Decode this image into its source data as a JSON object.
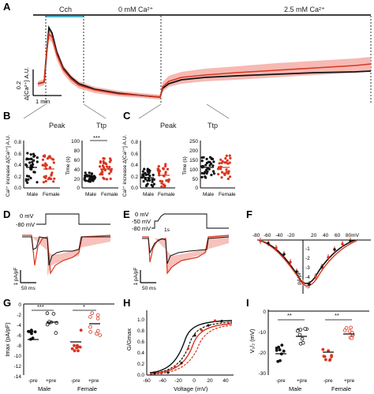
{
  "colors": {
    "male": "#111111",
    "female": "#d9361f",
    "female_band": "#f4a7a0",
    "male_band": "#9a9a9a",
    "cch_bar": "#4fb3c9"
  },
  "panels": {
    "A": {
      "letter": "A",
      "cch": "Cch",
      "ca0": "0 mM Ca²⁺",
      "ca25": "2.5 mM Ca²⁺",
      "scale_y_value": "0.2",
      "scale_y_label": "Δ[Ca²⁺] A.U.",
      "scale_x_label": "1 min"
    },
    "B": {
      "letter": "B",
      "peak": "Peak",
      "ttp": "Ttp",
      "y1_label": "Ca²⁺ increase Δ[Ca²⁺] A.U.",
      "y2_label": "Time (s)",
      "sig": "***",
      "male": "Male",
      "female": "Female",
      "y1_ticks": [
        "0.0",
        "0.2",
        "0.4",
        "0.6",
        "0.8"
      ],
      "y2_ticks": [
        "0",
        "20",
        "40",
        "60",
        "80",
        "100"
      ]
    },
    "C": {
      "letter": "C",
      "peak": "Peak",
      "ttp": "Ttp",
      "y1_label": "Ca²⁺ increase Δ[Ca²⁺] A.U.",
      "y2_label": "Time (s)",
      "male": "Male",
      "female": "Female",
      "y1_ticks": [
        "0.0",
        "0.2",
        "0.4",
        "0.6",
        "0.8"
      ],
      "y2_ticks": [
        "0",
        "50",
        "100",
        "150",
        "200",
        "250"
      ]
    },
    "D": {
      "letter": "D",
      "v1": "0 mV",
      "v2": "-80 mV",
      "scale_y": "1 pA/pF",
      "scale_x": "50 ms"
    },
    "E": {
      "letter": "E",
      "v1": "0 mV",
      "v2": "-50 mV",
      "v3": "-80 mV",
      "v_t": "1s",
      "scale_y": "1 pA/pF",
      "scale_x": "50 ms"
    },
    "F": {
      "letter": "F",
      "x_ticks": [
        "-80",
        "-60",
        "-40",
        "-20",
        "20",
        "40",
        "60",
        "80mV"
      ],
      "y_label": "pA/pF",
      "y_ticks": [
        "-1",
        "-2",
        "-3",
        "-4",
        "-5"
      ]
    },
    "G": {
      "letter": "G",
      "y_label": "Imax (pA/pF)",
      "y_ticks": [
        "0",
        "-2",
        "-4",
        "-6",
        "-8",
        "-10",
        "-12",
        "-14"
      ],
      "sig1": "***",
      "sig2": "*",
      "x_ticks": [
        "-pre",
        "+pre",
        "-pre",
        "+pre"
      ],
      "group1": "Male",
      "group2": "Female"
    },
    "H": {
      "letter": "H",
      "y_label": "G/Gmax",
      "x_label": "Voltage (mV)",
      "y_ticks": [
        "0.0",
        "0.2",
        "0.4",
        "0.6",
        "0.8",
        "1.0"
      ],
      "x_ticks": [
        "-60",
        "-40",
        "-20",
        "0",
        "20",
        "40"
      ]
    },
    "I": {
      "letter": "I",
      "y_label": "V₁/₂ (mV)",
      "y_ticks": [
        "0",
        "-10",
        "-20",
        "-30"
      ],
      "sig1": "**",
      "sig2": "**",
      "x_ticks": [
        "-pre",
        "+pre",
        "-pre",
        "+pre"
      ],
      "group1": "Male",
      "group2": "Female"
    }
  }
}
